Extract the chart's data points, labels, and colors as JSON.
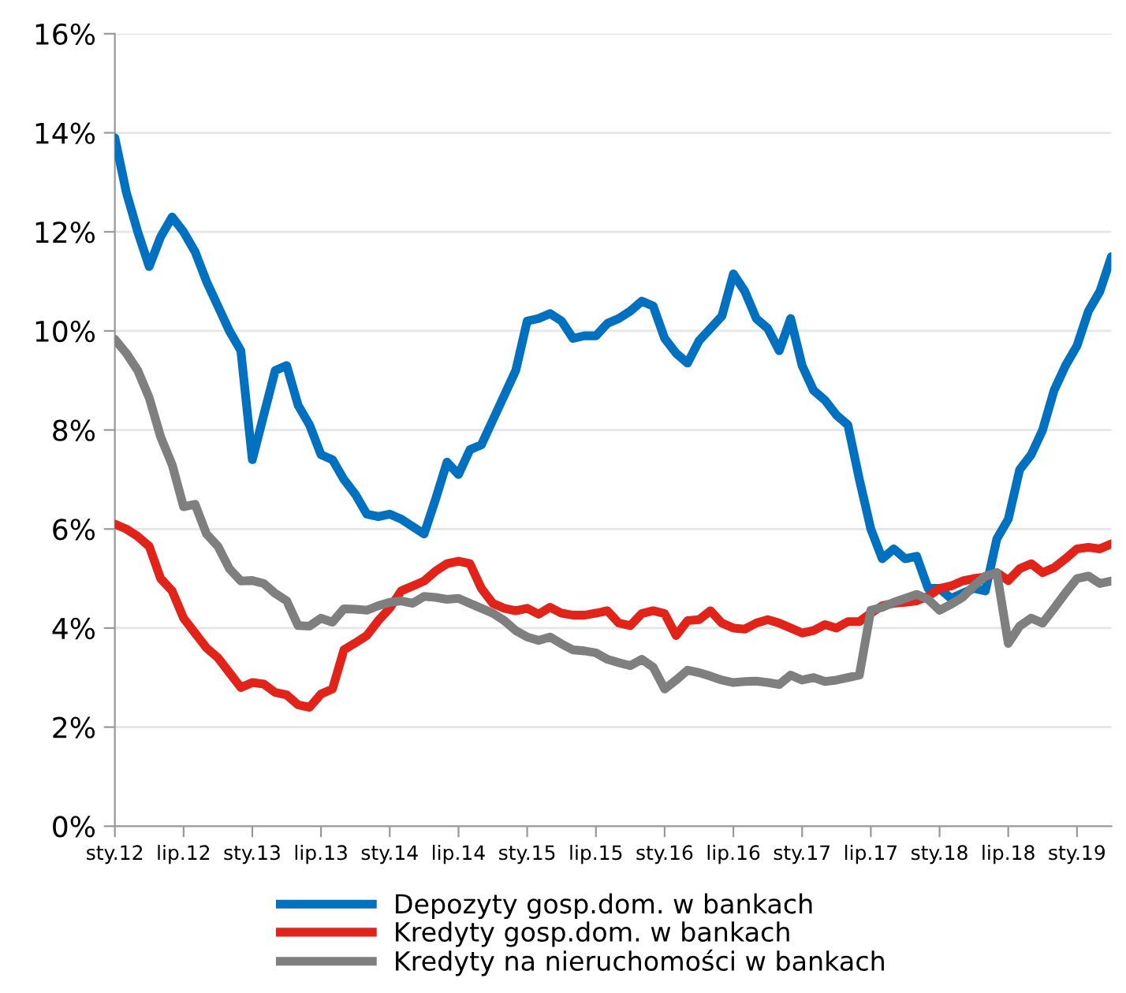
{
  "chart_data": {
    "type": "line",
    "categories": [
      "sty.12",
      null,
      null,
      null,
      null,
      null,
      "lip.12",
      null,
      null,
      null,
      null,
      null,
      "sty.13",
      null,
      null,
      null,
      null,
      null,
      "lip.13",
      null,
      null,
      null,
      null,
      null,
      "sty.14",
      null,
      null,
      null,
      null,
      null,
      "lip.14",
      null,
      null,
      null,
      null,
      null,
      "sty.15",
      null,
      null,
      null,
      null,
      null,
      "lip.15",
      null,
      null,
      null,
      null,
      null,
      "sty.16",
      null,
      null,
      null,
      null,
      null,
      "lip.16",
      null,
      null,
      null,
      null,
      null,
      "sty.17",
      null,
      null,
      null,
      null,
      null,
      "lip.17",
      null,
      null,
      null,
      null,
      null,
      "sty.18",
      null,
      null,
      null,
      null,
      null,
      "lip.18",
      null,
      null,
      null,
      null,
      null,
      "sty.19",
      null,
      null,
      null
    ],
    "series": [
      {
        "name": "Depozyty gosp.dom. w bankach",
        "color": "#0070c0",
        "values": [
          13.9,
          12.8,
          12.0,
          11.3,
          11.9,
          12.3,
          12.0,
          11.6,
          11.0,
          10.5,
          10.0,
          9.6,
          7.4,
          8.3,
          9.2,
          9.3,
          8.5,
          8.1,
          7.5,
          7.4,
          7.0,
          6.7,
          6.3,
          6.25,
          6.3,
          6.2,
          6.05,
          5.9,
          6.6,
          7.35,
          7.1,
          7.6,
          7.7,
          8.2,
          8.7,
          9.2,
          10.2,
          10.25,
          10.35,
          10.2,
          9.85,
          9.9,
          9.9,
          10.15,
          10.25,
          10.4,
          10.6,
          10.5,
          9.85,
          9.55,
          9.35,
          9.8,
          10.05,
          10.3,
          11.15,
          10.8,
          10.25,
          10.05,
          9.6,
          10.25,
          9.3,
          8.8,
          8.6,
          8.3,
          8.1,
          7.0,
          6.0,
          5.4,
          5.6,
          5.4,
          5.45,
          4.8,
          4.8,
          4.6,
          4.7,
          4.8,
          4.75,
          5.8,
          6.2,
          7.2,
          7.5,
          8.0,
          8.8,
          9.3,
          9.7,
          10.4,
          10.8,
          11.5
        ]
      },
      {
        "name": "Kredyty gosp.dom. w bankach",
        "color": "#e2231a",
        "values": [
          6.1,
          6.0,
          5.85,
          5.65,
          5.0,
          4.75,
          4.2,
          3.9,
          3.6,
          3.4,
          3.1,
          2.8,
          2.9,
          2.87,
          2.7,
          2.65,
          2.45,
          2.4,
          2.67,
          2.77,
          3.56,
          3.7,
          3.85,
          4.15,
          4.4,
          4.75,
          4.85,
          4.95,
          5.15,
          5.3,
          5.35,
          5.3,
          4.8,
          4.5,
          4.4,
          4.35,
          4.4,
          4.28,
          4.42,
          4.3,
          4.26,
          4.26,
          4.3,
          4.35,
          4.1,
          4.05,
          4.29,
          4.35,
          4.29,
          3.85,
          4.15,
          4.17,
          4.35,
          4.1,
          4.0,
          3.98,
          4.1,
          4.17,
          4.1,
          4.0,
          3.9,
          3.95,
          4.07,
          4.0,
          4.13,
          4.13,
          4.3,
          4.45,
          4.5,
          4.52,
          4.55,
          4.64,
          4.8,
          4.85,
          4.95,
          5.0,
          5.03,
          5.12,
          4.96,
          5.2,
          5.3,
          5.12,
          5.22,
          5.4,
          5.6,
          5.63,
          5.6,
          5.7
        ]
      },
      {
        "name": "Kredyty na nieruchomości w bankach",
        "color": "#7f7f7f",
        "values": [
          9.83,
          9.55,
          9.2,
          8.65,
          7.86,
          7.3,
          6.45,
          6.5,
          5.9,
          5.65,
          5.2,
          4.95,
          4.96,
          4.9,
          4.7,
          4.55,
          4.05,
          4.04,
          4.2,
          4.12,
          4.39,
          4.38,
          4.36,
          4.45,
          4.52,
          4.55,
          4.5,
          4.64,
          4.62,
          4.58,
          4.6,
          4.5,
          4.4,
          4.3,
          4.15,
          3.95,
          3.82,
          3.75,
          3.82,
          3.68,
          3.56,
          3.54,
          3.5,
          3.37,
          3.3,
          3.24,
          3.37,
          3.21,
          2.77,
          2.95,
          3.15,
          3.1,
          3.03,
          2.95,
          2.9,
          2.92,
          2.93,
          2.9,
          2.86,
          3.05,
          2.95,
          3.0,
          2.92,
          2.95,
          3.0,
          3.05,
          4.36,
          4.42,
          4.52,
          4.6,
          4.68,
          4.58,
          4.36,
          4.48,
          4.62,
          4.85,
          5.05,
          5.12,
          3.69,
          4.04,
          4.2,
          4.1,
          4.4,
          4.71,
          5.0,
          5.05,
          4.9,
          4.95
        ]
      }
    ],
    "ylim": [
      0,
      16
    ],
    "yticks": [
      {
        "value": 0,
        "label": "0%"
      },
      {
        "value": 2,
        "label": "2%"
      },
      {
        "value": 4,
        "label": "4%"
      },
      {
        "value": 6,
        "label": "6%"
      },
      {
        "value": 8,
        "label": "8%"
      },
      {
        "value": 10,
        "label": "10%"
      },
      {
        "value": 12,
        "label": "12%"
      },
      {
        "value": 14,
        "label": "14%"
      },
      {
        "value": 16,
        "label": "16%"
      }
    ],
    "grid": "y",
    "legend": "bottom",
    "marker": "none",
    "line_style": "solid"
  }
}
